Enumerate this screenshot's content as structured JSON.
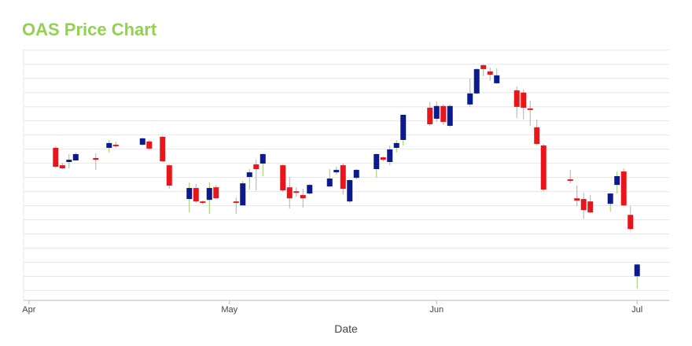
{
  "chart_data": {
    "type": "candlestick",
    "title": "OAS Price Chart",
    "x_label": "Date",
    "x": [
      4,
      5,
      6,
      7,
      10,
      12,
      13,
      17,
      18,
      20,
      21,
      24,
      25,
      26,
      27,
      28,
      31,
      32,
      33,
      34,
      35,
      38,
      39,
      40,
      41,
      42,
      45,
      46,
      47,
      48,
      49,
      52,
      53,
      54,
      55,
      56,
      60,
      61,
      62,
      63,
      66,
      67,
      68,
      69,
      70,
      73,
      74,
      75,
      76,
      77,
      81,
      82,
      83,
      84,
      87,
      88,
      89,
      90,
      91
    ],
    "open": [
      11.09,
      9.86,
      10.09,
      10.2,
      10.37,
      11.09,
      11.31,
      11.31,
      11.54,
      11.87,
      9.86,
      7.47,
      8.25,
      7.3,
      7.41,
      8.3,
      7.3,
      7.02,
      9.03,
      9.92,
      9.98,
      9.86,
      8.3,
      8.02,
      7.75,
      7.86,
      8.36,
      9.36,
      9.86,
      7.3,
      8.97,
      9.59,
      10.42,
      10.09,
      11.09,
      11.65,
      13.93,
      13.15,
      14.05,
      12.65,
      14.16,
      14.94,
      16.94,
      16.5,
      15.66,
      15.16,
      15.0,
      13.88,
      12.54,
      11.26,
      8.86,
      7.52,
      7.47,
      7.3,
      7.13,
      8.47,
      9.42,
      6.35,
      2.01
    ],
    "high": [
      11.2,
      10.03,
      10.65,
      10.76,
      10.7,
      11.65,
      11.54,
      11.82,
      11.65,
      11.93,
      9.92,
      8.64,
      8.53,
      7.36,
      8.64,
      8.47,
      7.58,
      8.75,
      9.59,
      10.25,
      10.7,
      9.92,
      9.03,
      8.3,
      8.19,
      8.53,
      9.59,
      9.75,
      9.98,
      8.86,
      9.59,
      10.7,
      10.48,
      11.26,
      11.65,
      13.43,
      14.32,
      14.38,
      14.16,
      14.16,
      16.0,
      16.72,
      17.0,
      16.78,
      16.72,
      15.44,
      15.22,
      14.44,
      13.1,
      11.37,
      9.53,
      8.42,
      7.91,
      7.75,
      7.91,
      9.42,
      9.64,
      6.97,
      2.9
    ],
    "low": [
      9.64,
      9.59,
      9.64,
      10.2,
      9.53,
      10.76,
      11.09,
      11.26,
      10.92,
      10.09,
      8.19,
      6.52,
      7.19,
      7.08,
      6.41,
      7.47,
      6.41,
      7.02,
      8.14,
      8.08,
      9.09,
      7.97,
      6.8,
      7.64,
      6.85,
      7.8,
      8.3,
      9.2,
      7.8,
      7.19,
      8.86,
      8.97,
      10.14,
      9.86,
      10.76,
      11.26,
      12.65,
      12.93,
      12.71,
      12.54,
      13.99,
      14.88,
      16.16,
      15.83,
      15.61,
      13.21,
      13.1,
      12.65,
      11.26,
      8.02,
      8.58,
      6.97,
      6.07,
      6.46,
      6.58,
      7.86,
      6.97,
      5.24,
      1.12
    ],
    "close": [
      9.75,
      9.64,
      10.25,
      10.65,
      10.25,
      11.43,
      11.2,
      11.76,
      11.04,
      10.14,
      8.42,
      8.25,
      7.3,
      7.19,
      8.25,
      7.52,
      7.19,
      8.58,
      9.36,
      9.59,
      10.65,
      8.08,
      7.52,
      7.91,
      7.52,
      8.47,
      8.92,
      9.53,
      8.19,
      8.81,
      9.53,
      10.65,
      10.25,
      10.98,
      11.43,
      13.43,
      12.76,
      14.05,
      12.93,
      14.05,
      14.94,
      16.66,
      16.66,
      16.27,
      16.22,
      13.99,
      13.93,
      13.77,
      11.37,
      8.14,
      8.75,
      7.36,
      6.69,
      6.52,
      7.86,
      9.09,
      7.02,
      5.35,
      2.84
    ],
    "up_color": "#0b1a8c",
    "down_color": "#e8161b",
    "up_wick_color": "#9ccc5c",
    "down_wick_color": "#b0b0b0",
    "xlim": [
      -0.8,
      95.8
    ],
    "xticks": [
      {
        "value": 0,
        "label": "Apr"
      },
      {
        "value": 30,
        "label": "May"
      },
      {
        "value": 61,
        "label": "Jun"
      },
      {
        "value": 91,
        "label": "Jul"
      }
    ],
    "ylim": [
      0.3,
      18.1
    ],
    "yticks": [
      1,
      2,
      3,
      4,
      5,
      6,
      7,
      8,
      9,
      10,
      11,
      12,
      13,
      14,
      15,
      16,
      17,
      18
    ],
    "grid": true
  }
}
